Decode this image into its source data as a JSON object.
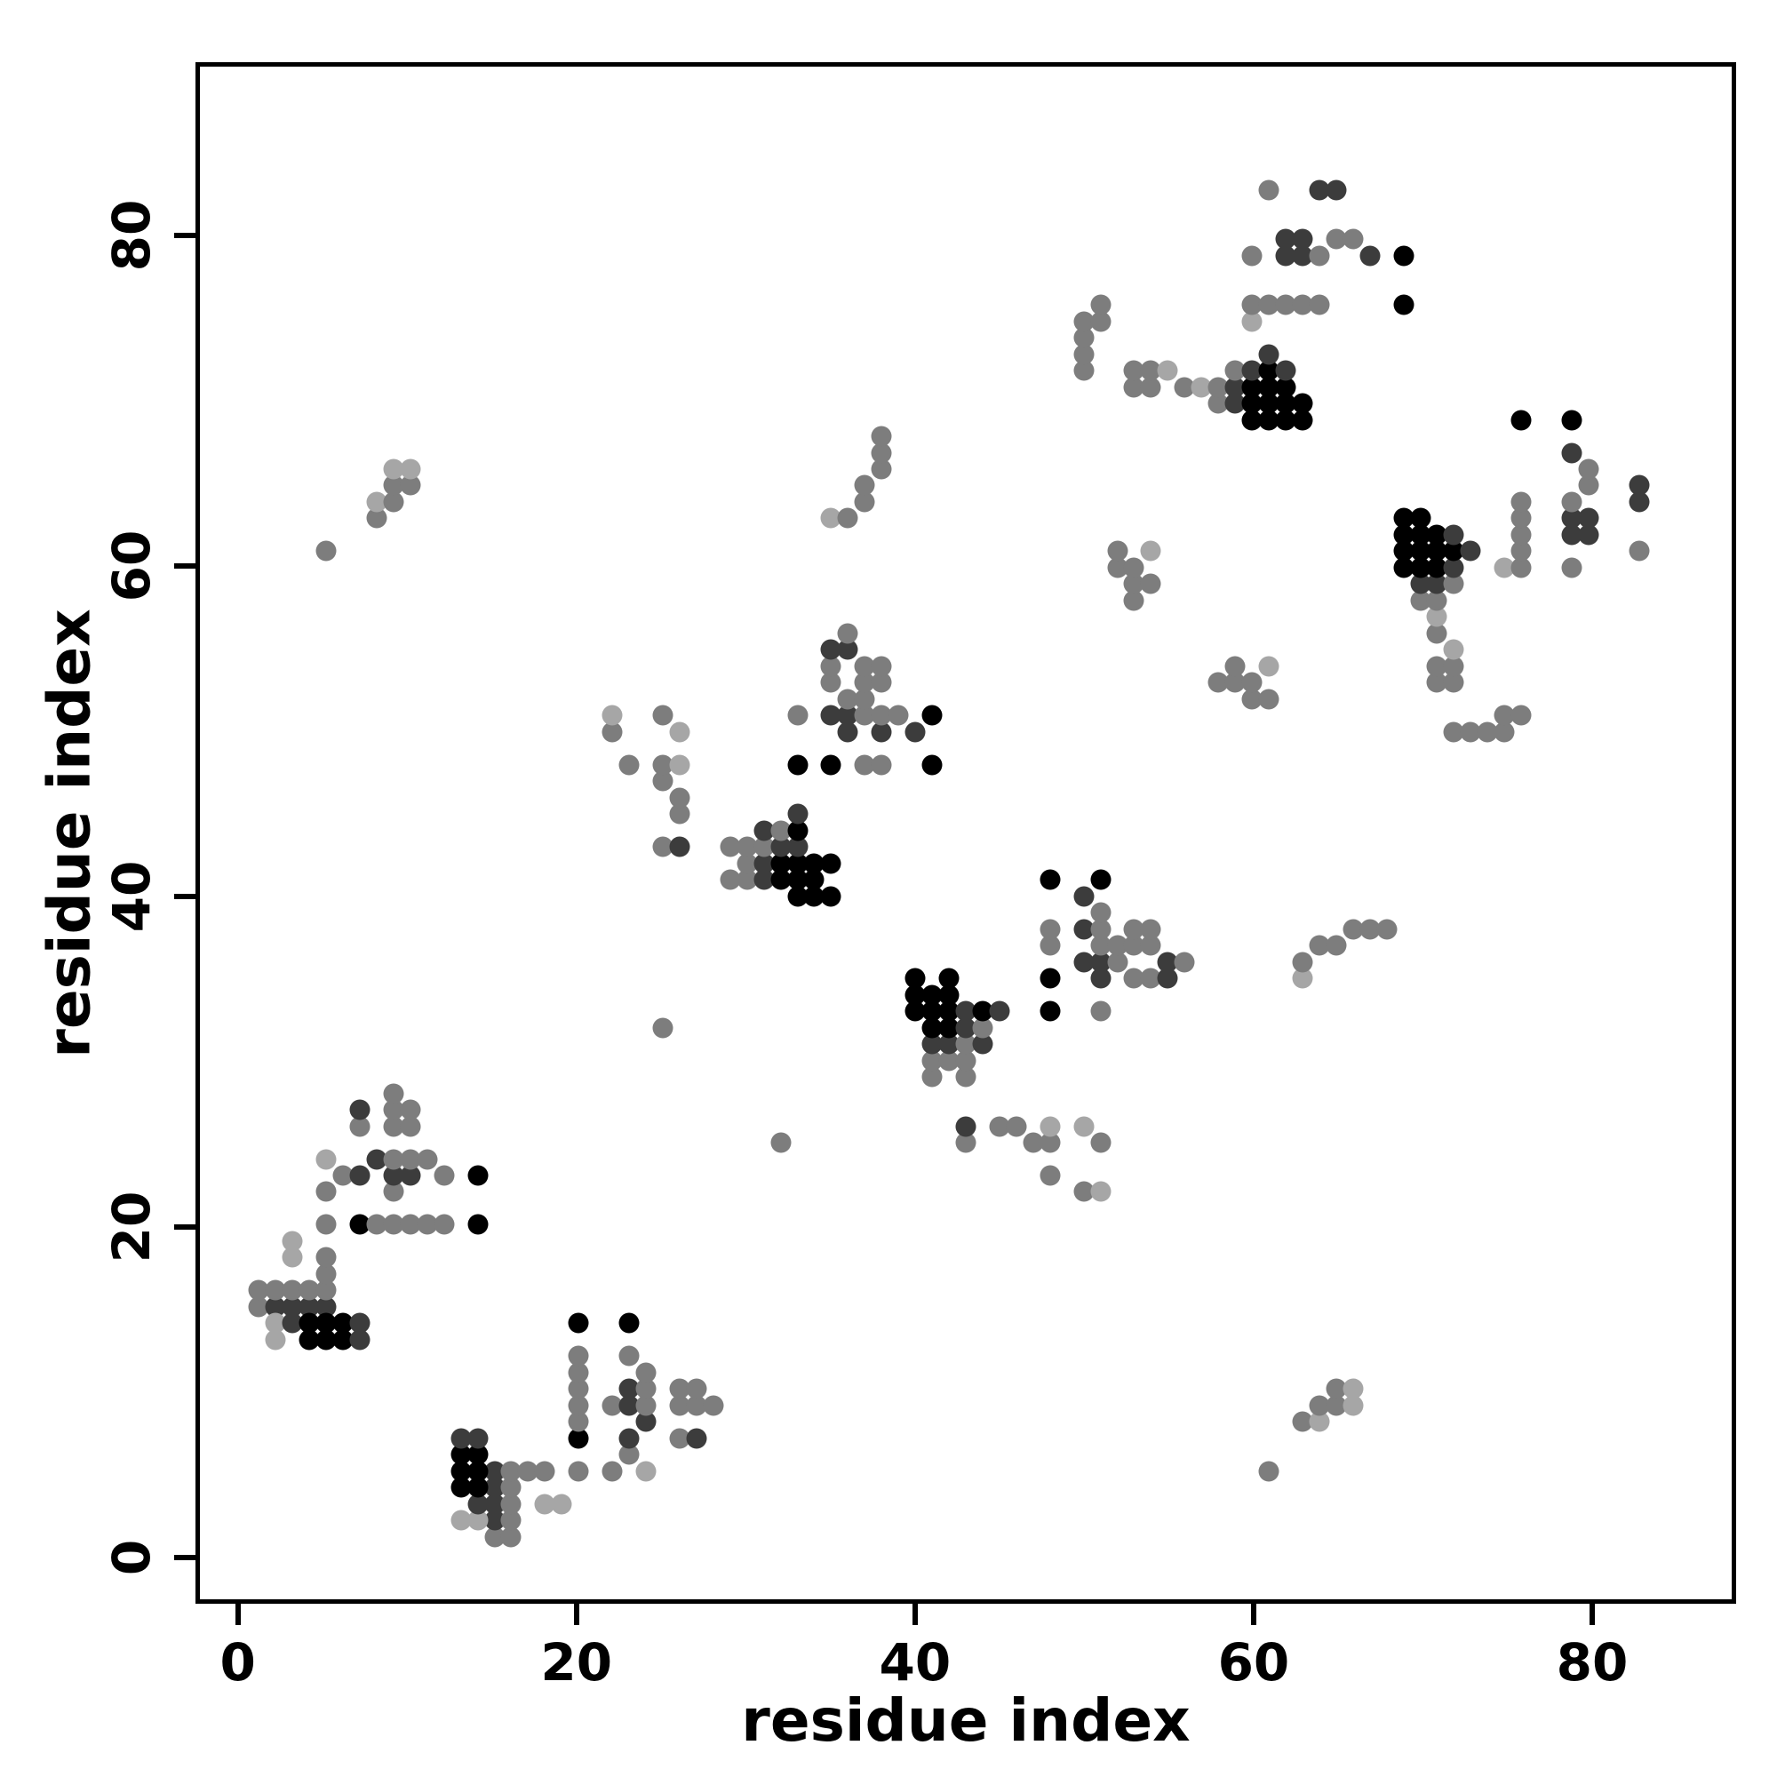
{
  "chart_data": {
    "type": "scatter",
    "title": "",
    "xlabel": "residue index",
    "ylabel": "residue index",
    "xlim": [
      -2.5,
      88.5
    ],
    "ylim": [
      -2.8,
      90.5
    ],
    "xticks": [
      0,
      20,
      40,
      60,
      80
    ],
    "yticks": [
      0,
      20,
      40,
      60,
      80
    ],
    "grid": false,
    "legend": "none",
    "marker": "circle",
    "symmetric": true,
    "shade_colors": {
      "l": "#a6a6a6",
      "m": "#7d7d7d",
      "d": "#3c3c3c",
      "k": "#000000"
    },
    "contacts": [
      [
        1,
        15,
        "m"
      ],
      [
        2,
        15,
        "d"
      ],
      [
        3,
        15,
        "d"
      ],
      [
        4,
        15,
        "d"
      ],
      [
        5,
        15,
        "d"
      ],
      [
        1,
        16,
        "m"
      ],
      [
        2,
        16,
        "m"
      ],
      [
        3,
        16,
        "m"
      ],
      [
        4,
        16,
        "m"
      ],
      [
        5,
        16,
        "m"
      ],
      [
        2,
        14,
        "l"
      ],
      [
        3,
        14,
        "d"
      ],
      [
        4,
        14,
        "k"
      ],
      [
        5,
        14,
        "k"
      ],
      [
        6,
        14,
        "k"
      ],
      [
        2,
        13,
        "l"
      ],
      [
        4,
        13,
        "k"
      ],
      [
        5,
        13,
        "k"
      ],
      [
        6,
        13,
        "k"
      ],
      [
        7,
        13,
        "d"
      ],
      [
        7,
        14,
        "d"
      ],
      [
        5,
        17,
        "m"
      ],
      [
        5,
        18,
        "m"
      ],
      [
        3,
        18,
        "l"
      ],
      [
        3,
        19,
        "l"
      ],
      [
        5,
        20,
        "m"
      ],
      [
        7,
        20,
        "k"
      ],
      [
        8,
        20,
        "m"
      ],
      [
        9,
        20,
        "m"
      ],
      [
        10,
        20,
        "m"
      ],
      [
        11,
        20,
        "m"
      ],
      [
        12,
        20,
        "m"
      ],
      [
        14,
        20,
        "k"
      ],
      [
        5,
        22,
        "m"
      ],
      [
        9,
        22,
        "m"
      ],
      [
        6,
        23,
        "m"
      ],
      [
        7,
        23,
        "d"
      ],
      [
        9,
        23,
        "d"
      ],
      [
        10,
        23,
        "d"
      ],
      [
        12,
        23,
        "m"
      ],
      [
        14,
        23,
        "k"
      ],
      [
        5,
        24,
        "l"
      ],
      [
        8,
        24,
        "d"
      ],
      [
        9,
        24,
        "m"
      ],
      [
        10,
        24,
        "m"
      ],
      [
        11,
        24,
        "m"
      ],
      [
        7,
        26,
        "m"
      ],
      [
        9,
        26,
        "m"
      ],
      [
        10,
        26,
        "m"
      ],
      [
        7,
        27,
        "d"
      ],
      [
        9,
        27,
        "m"
      ],
      [
        10,
        27,
        "m"
      ],
      [
        9,
        28,
        "m"
      ],
      [
        5,
        61,
        "m"
      ],
      [
        8,
        63,
        "m"
      ],
      [
        8,
        64,
        "l"
      ],
      [
        9,
        64,
        "m"
      ],
      [
        9,
        65,
        "m"
      ],
      [
        10,
        65,
        "m"
      ],
      [
        9,
        66,
        "l"
      ],
      [
        10,
        66,
        "l"
      ],
      [
        22,
        50,
        "m"
      ],
      [
        22,
        51,
        "l"
      ],
      [
        23,
        48,
        "m"
      ],
      [
        25,
        47,
        "m"
      ],
      [
        25,
        48,
        "m"
      ],
      [
        25,
        51,
        "m"
      ],
      [
        26,
        48,
        "l"
      ],
      [
        26,
        50,
        "l"
      ],
      [
        25,
        43,
        "m"
      ],
      [
        26,
        43,
        "d"
      ],
      [
        26,
        45,
        "m"
      ],
      [
        26,
        46,
        "m"
      ],
      [
        25,
        32,
        "m"
      ],
      [
        29,
        41,
        "m"
      ],
      [
        30,
        41,
        "m"
      ],
      [
        31,
        41,
        "d"
      ],
      [
        32,
        41,
        "k"
      ],
      [
        33,
        41,
        "k"
      ],
      [
        34,
        41,
        "k"
      ],
      [
        30,
        42,
        "m"
      ],
      [
        31,
        42,
        "d"
      ],
      [
        32,
        42,
        "k"
      ],
      [
        33,
        42,
        "k"
      ],
      [
        34,
        42,
        "k"
      ],
      [
        35,
        42,
        "k"
      ],
      [
        29,
        43,
        "m"
      ],
      [
        30,
        43,
        "m"
      ],
      [
        31,
        43,
        "m"
      ],
      [
        32,
        43,
        "d"
      ],
      [
        33,
        43,
        "d"
      ],
      [
        31,
        44,
        "d"
      ],
      [
        32,
        44,
        "m"
      ],
      [
        33,
        44,
        "k"
      ],
      [
        33,
        45,
        "d"
      ],
      [
        33,
        40,
        "k"
      ],
      [
        34,
        40,
        "k"
      ],
      [
        35,
        40,
        "k"
      ],
      [
        33,
        48,
        "k"
      ],
      [
        35,
        48,
        "k"
      ],
      [
        37,
        48,
        "m"
      ],
      [
        38,
        48,
        "m"
      ],
      [
        41,
        48,
        "k"
      ],
      [
        36,
        50,
        "d"
      ],
      [
        38,
        50,
        "d"
      ],
      [
        40,
        50,
        "d"
      ],
      [
        33,
        51,
        "m"
      ],
      [
        35,
        51,
        "d"
      ],
      [
        36,
        51,
        "d"
      ],
      [
        37,
        51,
        "m"
      ],
      [
        38,
        51,
        "m"
      ],
      [
        39,
        51,
        "m"
      ],
      [
        41,
        51,
        "k"
      ],
      [
        36,
        52,
        "m"
      ],
      [
        37,
        52,
        "m"
      ],
      [
        35,
        53,
        "m"
      ],
      [
        37,
        53,
        "m"
      ],
      [
        38,
        53,
        "m"
      ],
      [
        35,
        54,
        "m"
      ],
      [
        37,
        54,
        "m"
      ],
      [
        38,
        54,
        "m"
      ],
      [
        35,
        55,
        "d"
      ],
      [
        36,
        55,
        "d"
      ],
      [
        36,
        56,
        "m"
      ],
      [
        35,
        63,
        "l"
      ],
      [
        36,
        63,
        "m"
      ],
      [
        37,
        64,
        "m"
      ],
      [
        37,
        65,
        "m"
      ],
      [
        38,
        66,
        "m"
      ],
      [
        38,
        67,
        "m"
      ],
      [
        38,
        68,
        "m"
      ],
      [
        52,
        60,
        "m"
      ],
      [
        52,
        61,
        "m"
      ],
      [
        53,
        58,
        "m"
      ],
      [
        53,
        59,
        "m"
      ],
      [
        53,
        60,
        "m"
      ],
      [
        54,
        59,
        "m"
      ],
      [
        54,
        61,
        "l"
      ],
      [
        50,
        72,
        "m"
      ],
      [
        50,
        73,
        "m"
      ],
      [
        50,
        74,
        "m"
      ],
      [
        50,
        75,
        "m"
      ],
      [
        51,
        75,
        "m"
      ],
      [
        51,
        76,
        "m"
      ],
      [
        53,
        71,
        "m"
      ],
      [
        53,
        72,
        "m"
      ],
      [
        54,
        71,
        "m"
      ],
      [
        54,
        72,
        "m"
      ],
      [
        55,
        72,
        "l"
      ],
      [
        56,
        71,
        "m"
      ],
      [
        57,
        71,
        "l"
      ],
      [
        58,
        70,
        "m"
      ],
      [
        58,
        71,
        "m"
      ],
      [
        59,
        70,
        "d"
      ],
      [
        59,
        71,
        "d"
      ],
      [
        59,
        72,
        "m"
      ],
      [
        60,
        69,
        "k"
      ],
      [
        60,
        70,
        "k"
      ],
      [
        60,
        71,
        "k"
      ],
      [
        60,
        72,
        "d"
      ],
      [
        61,
        69,
        "k"
      ],
      [
        61,
        70,
        "k"
      ],
      [
        61,
        71,
        "k"
      ],
      [
        61,
        72,
        "k"
      ],
      [
        61,
        73,
        "d"
      ],
      [
        62,
        69,
        "k"
      ],
      [
        62,
        70,
        "k"
      ],
      [
        62,
        71,
        "k"
      ],
      [
        62,
        72,
        "d"
      ],
      [
        63,
        69,
        "k"
      ],
      [
        63,
        70,
        "k"
      ],
      [
        60,
        75,
        "l"
      ],
      [
        60,
        76,
        "m"
      ],
      [
        61,
        76,
        "m"
      ],
      [
        62,
        76,
        "m"
      ],
      [
        63,
        76,
        "m"
      ],
      [
        64,
        76,
        "m"
      ],
      [
        69,
        76,
        "k"
      ],
      [
        60,
        79,
        "m"
      ],
      [
        62,
        79,
        "d"
      ],
      [
        63,
        79,
        "d"
      ],
      [
        64,
        79,
        "m"
      ],
      [
        67,
        79,
        "d"
      ],
      [
        69,
        79,
        "k"
      ],
      [
        62,
        80,
        "d"
      ],
      [
        63,
        80,
        "d"
      ],
      [
        65,
        80,
        "m"
      ],
      [
        66,
        80,
        "m"
      ],
      [
        61,
        83,
        "m"
      ],
      [
        64,
        83,
        "d"
      ],
      [
        65,
        83,
        "d"
      ]
    ]
  }
}
